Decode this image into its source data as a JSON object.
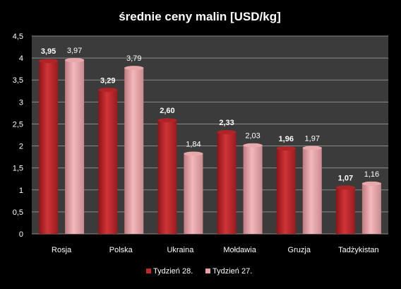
{
  "chart_data": {
    "type": "bar",
    "title": "średnie ceny malin [USD/kg]",
    "categories": [
      "Rosja",
      "Polska",
      "Ukraina",
      "Mołdawia",
      "Gruzja",
      "Tadżykistan"
    ],
    "series": [
      {
        "name": "Tydzień 28.",
        "values": [
          3.95,
          3.29,
          2.6,
          2.33,
          1.96,
          1.07
        ],
        "labels": [
          "3,95",
          "3,29",
          "2,60",
          "2,33",
          "1,96",
          "1,07"
        ],
        "color": "#c0282c"
      },
      {
        "name": "Tydzień 27.",
        "values": [
          3.97,
          3.79,
          1.84,
          2.03,
          1.97,
          1.16
        ],
        "labels": [
          "3,97",
          "3,79",
          "1,84",
          "2,03",
          "1,97",
          "1,16"
        ],
        "color": "#e8a0a4"
      }
    ],
    "yticks": [
      "0",
      "0,5",
      "1",
      "1,5",
      "2",
      "2,5",
      "3",
      "3,5",
      "4",
      "4,5"
    ],
    "ylim": [
      0,
      4.5
    ],
    "grid": true,
    "legend": "bottom",
    "colors": {
      "background": "#000000",
      "plot_area": "#3b3b3b",
      "gridline": "#8a8a8a"
    }
  }
}
